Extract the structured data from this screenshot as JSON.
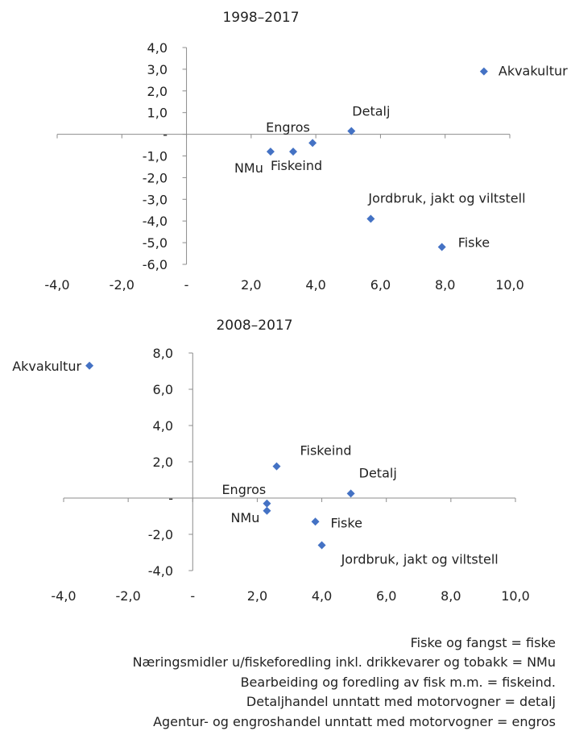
{
  "chart_data": [
    {
      "type": "scatter",
      "title": "1998–2017",
      "xlim": [
        -4,
        10
      ],
      "ylim": [
        -6,
        4
      ],
      "x_ticks": [
        "-4,0",
        "-2,0",
        "-",
        "2,0",
        "4,0",
        "6,0",
        "8,0",
        "10,0"
      ],
      "y_ticks": [
        "4,0",
        "3,0",
        "2,0",
        "1,0",
        "-",
        "-1,0",
        "-2,0",
        "-3,0",
        "-4,0",
        "-5,0",
        "-6,0"
      ],
      "points": [
        {
          "label": "Akvakultur",
          "x": 9.2,
          "y": 2.9
        },
        {
          "label": "Detalj",
          "x": 5.1,
          "y": 0.15
        },
        {
          "label": "Engros",
          "x": 3.9,
          "y": -0.4
        },
        {
          "label": "Fiskeind",
          "x": 3.3,
          "y": -0.8
        },
        {
          "label": "NMu",
          "x": 2.6,
          "y": -0.8
        },
        {
          "label": "Jordbruk, jakt og viltstell",
          "x": 5.7,
          "y": -3.9
        },
        {
          "label": "Fiske",
          "x": 7.9,
          "y": -5.2
        }
      ],
      "grid": false,
      "legend": "none",
      "marker_color": "#4472C4"
    },
    {
      "type": "scatter",
      "title": "2008–2017",
      "xlim": [
        -4,
        10
      ],
      "ylim": [
        -4,
        8
      ],
      "x_ticks": [
        "-4,0",
        "-2,0",
        "-",
        "2,0",
        "4,0",
        "6,0",
        "8,0",
        "10,0"
      ],
      "y_ticks": [
        "8,0",
        "6,0",
        "4,0",
        "2,0",
        "-",
        "-2,0",
        "-4,0"
      ],
      "points": [
        {
          "label": "Akvakultur",
          "x": -3.2,
          "y": 7.3
        },
        {
          "label": "Fiskeind",
          "x": 2.6,
          "y": 1.75
        },
        {
          "label": "Detalj",
          "x": 4.9,
          "y": 0.25
        },
        {
          "label": "Engros",
          "x": 2.3,
          "y": -0.3
        },
        {
          "label": "NMu",
          "x": 2.3,
          "y": -0.7
        },
        {
          "label": "Fiske",
          "x": 3.8,
          "y": -1.3
        },
        {
          "label": "Jordbruk, jakt og viltstell",
          "x": 4.0,
          "y": -2.6
        }
      ],
      "grid": false,
      "legend": "none",
      "marker_color": "#4472C4"
    }
  ],
  "notes": [
    "Fiske og fangst = fiske",
    "Næringsmidler u/fiskeforedling  inkl. drikkevarer og tobakk = NMu",
    "Bearbeiding og foredling av fisk m.m. = fiskeind.",
    "Detaljhandel unntatt med motorvogner = detalj",
    "Agentur- og engroshandel unntatt med motorvogner = engros"
  ]
}
